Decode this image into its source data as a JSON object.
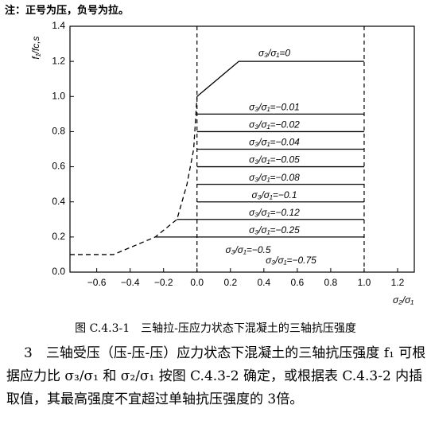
{
  "note": "注：正号为压，负号为拉。",
  "chart_data": {
    "type": "line",
    "x_label": "σ₂/σ₁",
    "y_label": "f₁/fc,s",
    "xlim": [
      -0.76,
      1.3
    ],
    "ylim": [
      0,
      1.4
    ],
    "xticks": [
      {
        "value": -0.6,
        "label": "−0.6"
      },
      {
        "value": -0.4,
        "label": "−0.4"
      },
      {
        "value": -0.2,
        "label": "−0.2"
      },
      {
        "value": 0,
        "label": "0.0"
      },
      0.2,
      0.4,
      0.6,
      0.8,
      {
        "value": 1,
        "label": "1.0"
      },
      1.2
    ],
    "yticks": [
      {
        "value": 0,
        "label": "0.0"
      },
      0.2,
      0.4,
      0.6,
      0.8,
      {
        "value": 1,
        "label": "1.0"
      },
      1.2,
      1.4
    ],
    "vlines": [
      0,
      1
    ],
    "color": "#000000",
    "series": [
      {
        "name": "σ₃/σ₁=0",
        "x": [
          0,
          0.25,
          1
        ],
        "values": [
          1.0,
          1.2,
          1.2
        ]
      },
      {
        "name": "σ₃/σ₁=−0.01",
        "x": [
          0,
          1
        ],
        "values": [
          0.9,
          0.9
        ]
      },
      {
        "name": "σ₃/σ₁=−0.02",
        "x": [
          0,
          1
        ],
        "values": [
          0.8,
          0.8
        ]
      },
      {
        "name": "σ₃/σ₁=−0.04",
        "x": [
          0,
          1
        ],
        "values": [
          0.7,
          0.7
        ]
      },
      {
        "name": "σ₃/σ₁=−0.05",
        "x": [
          0,
          1
        ],
        "values": [
          0.6,
          0.6
        ]
      },
      {
        "name": "σ₃/σ₁=−0.08",
        "x": [
          0,
          1
        ],
        "values": [
          0.5,
          0.5
        ]
      },
      {
        "name": "σ₃/σ₁=−0.1",
        "x": [
          0,
          1
        ],
        "values": [
          0.4,
          0.4
        ]
      },
      {
        "name": "σ₃/σ₁=−0.12",
        "x": [
          -0.12,
          1
        ],
        "values": [
          0.3,
          0.3
        ]
      },
      {
        "name": "σ₃/σ₁=−0.25",
        "x": [
          -0.25,
          1
        ],
        "values": [
          0.2,
          0.2
        ]
      },
      {
        "x": [
          -0.76,
          -0.5,
          -0.25,
          -0.12,
          -0.06,
          -0.02,
          0
        ],
        "values": [
          0.1,
          0.1,
          0.2,
          0.3,
          0.5,
          0.7,
          1.0
        ],
        "dashed": true
      }
    ],
    "annotations": [
      "σ₃/σ₁=−0.5",
      "σ₃/σ₁=−0.75"
    ]
  },
  "caption": "图 C.4.3-1　三轴拉-压应力状态下混凝土的三轴抗压强度",
  "paragraph": "3　三轴受压（压-压-压）应力状态下混凝土的三轴抗压强度 f₁ 可根据应力比 σ₃/σ₁ 和 σ₂/σ₁ 按图 C.4.3-2 确定，或根据表 C.4.3-2 内插取值，其最高强度不宜超过单轴抗压强度的 3倍。"
}
